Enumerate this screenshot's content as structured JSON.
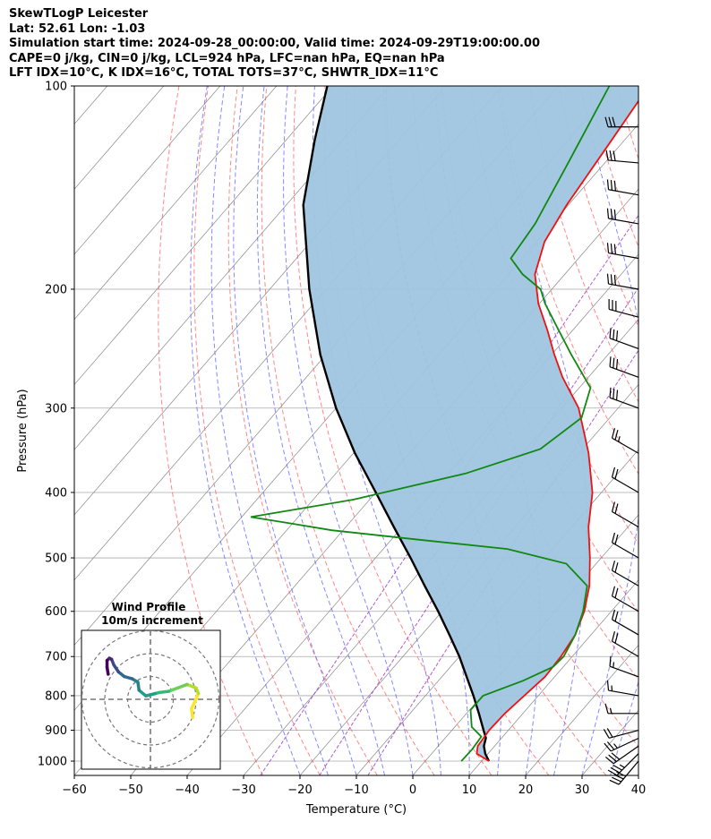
{
  "header": {
    "title": "SkewTLogP Leicester",
    "location": "Lat: 52.61   Lon: -1.03",
    "times": "Simulation start time: 2024-09-28_00:00:00, Valid time: 2024-09-29T19:00:00.00",
    "indices1": "CAPE=0 j/kg, CIN=0 j/kg, LCL=924 hPa, LFC=nan hPa, EQ=nan hPa",
    "indices2": "LFT IDX=10°C, K IDX=16°C, TOTAL TOTS=37°C, SHWTR_IDX=11°C"
  },
  "colors": {
    "temperature": "#ee1111",
    "dewpoint": "#118811",
    "parcel": "#000000",
    "fill": "#9fc5e0",
    "dry_adiabats": "#ff5555",
    "moist_adiabats": "#5555ff",
    "mixing_ratio": "#9933cc",
    "isotherms": "#888888",
    "isobars": "#aaaaaa"
  },
  "chart_data": {
    "type": "line",
    "xlabel": "Temperature (°C)",
    "ylabel": "Pressure (hPa)",
    "y_scale": "log",
    "x_skew": true,
    "xlim": [
      -60,
      40
    ],
    "ylim": [
      1050,
      100
    ],
    "x_ticks": [
      "−60",
      "−50",
      "−40",
      "−30",
      "−20",
      "−10",
      "0",
      "10",
      "20",
      "30",
      "40"
    ],
    "y_ticks": [
      "100",
      "200",
      "300",
      "400",
      "500",
      "600",
      "700",
      "800",
      "900",
      "1000"
    ],
    "grid": true,
    "series": [
      {
        "key": "temperature",
        "points": [
          [
            1000,
            11.3
          ],
          [
            975,
            8.0
          ],
          [
            950,
            7.0
          ],
          [
            925,
            6.8
          ],
          [
            900,
            6.6
          ],
          [
            850,
            6.8
          ],
          [
            800,
            7.5
          ],
          [
            750,
            8.3
          ],
          [
            700,
            8.0
          ],
          [
            650,
            7.2
          ],
          [
            600,
            5.2
          ],
          [
            550,
            2.2
          ],
          [
            500,
            -2.0
          ],
          [
            450,
            -7.0
          ],
          [
            400,
            -11.6
          ],
          [
            350,
            -18.3
          ],
          [
            300,
            -27.0
          ],
          [
            270,
            -34.6
          ],
          [
            250,
            -39.5
          ],
          [
            230,
            -44.5
          ],
          [
            210,
            -50.2
          ],
          [
            190,
            -55.3
          ],
          [
            170,
            -58.6
          ],
          [
            150,
            -60.3
          ],
          [
            120,
            -62.3
          ],
          [
            100,
            -64.0
          ]
        ]
      },
      {
        "key": "dewpoint",
        "points": [
          [
            1000,
            6.4
          ],
          [
            960,
            6.5
          ],
          [
            920,
            6.2
          ],
          [
            890,
            3.0
          ],
          [
            840,
            0.2
          ],
          [
            800,
            0.2
          ],
          [
            760,
            5.0
          ],
          [
            725,
            8.2
          ],
          [
            700,
            8.5
          ],
          [
            650,
            7.2
          ],
          [
            600,
            5.0
          ],
          [
            550,
            1.8
          ],
          [
            510,
            -5.3
          ],
          [
            485,
            -18.0
          ],
          [
            470,
            -35.0
          ],
          [
            455,
            -52.0
          ],
          [
            445,
            -60.0
          ],
          [
            435,
            -68.4
          ],
          [
            410,
            -53.0
          ],
          [
            375,
            -37.0
          ],
          [
            345,
            -27.5
          ],
          [
            310,
            -25.0
          ],
          [
            280,
            -28.0
          ],
          [
            250,
            -36.5
          ],
          [
            230,
            -42.5
          ],
          [
            210,
            -49.0
          ],
          [
            200,
            -52.0
          ],
          [
            190,
            -57.5
          ],
          [
            180,
            -62.0
          ],
          [
            160,
            -63.0
          ],
          [
            130,
            -66.5
          ],
          [
            100,
            -71.0
          ]
        ]
      },
      {
        "key": "parcel",
        "points": [
          [
            1000,
            11.3
          ],
          [
            975,
            9.5
          ],
          [
            950,
            8.1
          ],
          [
            924,
            7.2
          ],
          [
            900,
            5.6
          ],
          [
            850,
            2.2
          ],
          [
            800,
            -1.5
          ],
          [
            750,
            -5.6
          ],
          [
            700,
            -10.0
          ],
          [
            650,
            -15.1
          ],
          [
            600,
            -20.7
          ],
          [
            550,
            -27.0
          ],
          [
            500,
            -33.8
          ],
          [
            450,
            -41.5
          ],
          [
            400,
            -50.0
          ],
          [
            350,
            -59.7
          ],
          [
            300,
            -70.0
          ],
          [
            250,
            -81.0
          ],
          [
            200,
            -93.0
          ],
          [
            150,
            -107.0
          ],
          [
            120,
            -115.0
          ],
          [
            100,
            -121.0
          ]
        ]
      }
    ],
    "wind_barbs": [
      {
        "p": 1000,
        "speed_kt": 40,
        "dir_deg": 220
      },
      {
        "p": 975,
        "speed_kt": 35,
        "dir_deg": 225
      },
      {
        "p": 950,
        "speed_kt": 30,
        "dir_deg": 235
      },
      {
        "p": 925,
        "speed_kt": 25,
        "dir_deg": 245
      },
      {
        "p": 900,
        "speed_kt": 20,
        "dir_deg": 255
      },
      {
        "p": 850,
        "speed_kt": 15,
        "dir_deg": 270
      },
      {
        "p": 800,
        "speed_kt": 15,
        "dir_deg": 280
      },
      {
        "p": 750,
        "speed_kt": 15,
        "dir_deg": 290
      },
      {
        "p": 700,
        "speed_kt": 20,
        "dir_deg": 300
      },
      {
        "p": 650,
        "speed_kt": 20,
        "dir_deg": 300
      },
      {
        "p": 600,
        "speed_kt": 20,
        "dir_deg": 300
      },
      {
        "p": 550,
        "speed_kt": 20,
        "dir_deg": 300
      },
      {
        "p": 500,
        "speed_kt": 20,
        "dir_deg": 300
      },
      {
        "p": 450,
        "speed_kt": 20,
        "dir_deg": 300
      },
      {
        "p": 400,
        "speed_kt": 20,
        "dir_deg": 300
      },
      {
        "p": 350,
        "speed_kt": 25,
        "dir_deg": 300
      },
      {
        "p": 300,
        "speed_kt": 30,
        "dir_deg": 290
      },
      {
        "p": 270,
        "speed_kt": 30,
        "dir_deg": 290
      },
      {
        "p": 245,
        "speed_kt": 30,
        "dir_deg": 290
      },
      {
        "p": 220,
        "speed_kt": 30,
        "dir_deg": 285
      },
      {
        "p": 200,
        "speed_kt": 30,
        "dir_deg": 280
      },
      {
        "p": 180,
        "speed_kt": 30,
        "dir_deg": 280
      },
      {
        "p": 160,
        "speed_kt": 30,
        "dir_deg": 280
      },
      {
        "p": 145,
        "speed_kt": 30,
        "dir_deg": 280
      },
      {
        "p": 130,
        "speed_kt": 30,
        "dir_deg": 275
      },
      {
        "p": 115,
        "speed_kt": 30,
        "dir_deg": 270
      }
    ],
    "hodograph": {
      "title": "Wind Profile",
      "subtitle": "10m/s increment",
      "rings_ms": [
        10,
        20,
        30
      ],
      "trace_uv": [
        [
          18.5,
          -8.0
        ],
        [
          18.0,
          -4.0
        ],
        [
          19.0,
          -2.0
        ],
        [
          21.0,
          2.5
        ],
        [
          20.0,
          5.0
        ],
        [
          16.0,
          6.5
        ],
        [
          12.0,
          5.0
        ],
        [
          8.0,
          3.5
        ],
        [
          4.0,
          3.0
        ],
        [
          2.0,
          2.5
        ],
        [
          -2.0,
          1.5
        ],
        [
          -5.0,
          4.0
        ],
        [
          -5.5,
          7.5
        ],
        [
          -8.0,
          9.0
        ],
        [
          -11.5,
          10.0
        ],
        [
          -14.0,
          12.0
        ],
        [
          -16.0,
          15.0
        ],
        [
          -17.0,
          17.5
        ],
        [
          -18.0,
          18.0
        ],
        [
          -19.0,
          17.0
        ],
        [
          -19.0,
          14.0
        ],
        [
          -18.5,
          11.0
        ]
      ]
    }
  }
}
